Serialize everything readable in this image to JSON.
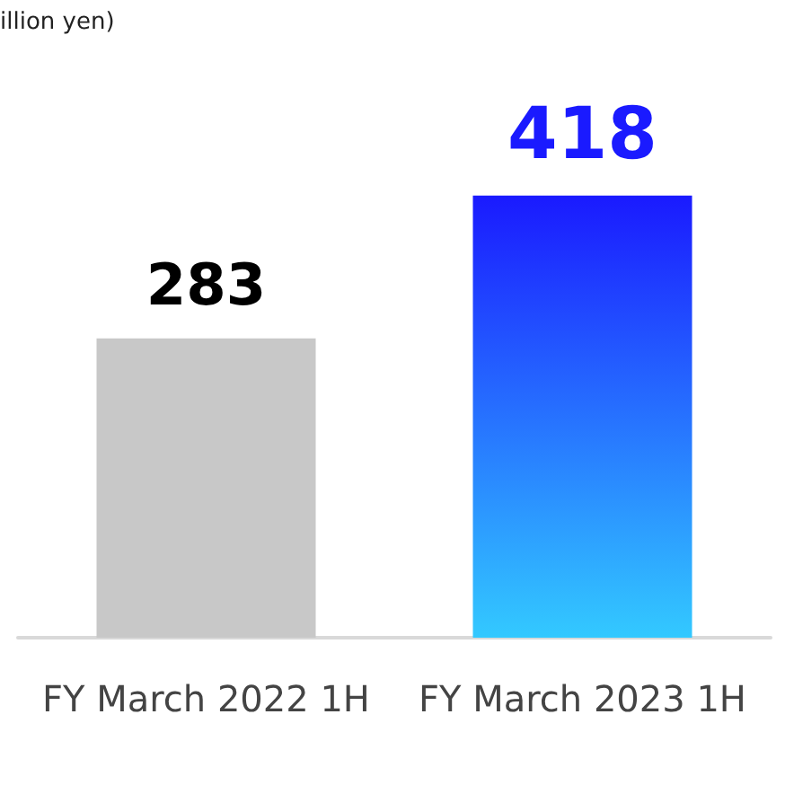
{
  "chart_data": {
    "type": "bar",
    "annotations": [
      "illion yen)"
    ],
    "categories": [
      "FY March 2022 1H",
      "FY March 2023 1H"
    ],
    "values": [
      283,
      418
    ],
    "colors": [
      "#c8c8c8",
      "#1a1aff"
    ],
    "data_labels": true
  }
}
